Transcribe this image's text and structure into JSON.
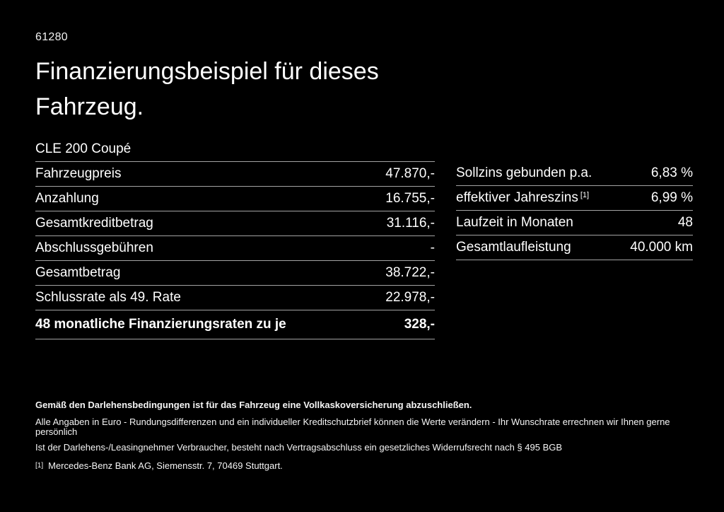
{
  "page": {
    "background_color": "#000000",
    "text_color": "#ffffff",
    "divider_color": "#a3a3a3"
  },
  "document": {
    "number": "61280",
    "title_line1": "Finanzierungsbeispiel für dieses",
    "title_line2": "Fahrzeug.",
    "model": "CLE 200 Coupé"
  },
  "finance_table": {
    "rows": [
      {
        "label": "Fahrzeugpreis",
        "value": "47.870,-"
      },
      {
        "label": "Anzahlung",
        "value": "16.755,-"
      },
      {
        "label": "Gesamtkreditbetrag",
        "value": "31.116,-"
      },
      {
        "label": "Abschlussgebühren",
        "value": "-"
      },
      {
        "label": "Gesamtbetrag",
        "value": "38.722,-"
      },
      {
        "label": "Schlussrate als 49. Rate",
        "value": "22.978,-"
      },
      {
        "label": "48 monatliche Finanzierungsraten zu je",
        "value": "328,-"
      }
    ]
  },
  "conditions_table": {
    "rows": [
      {
        "label": "Sollzins gebunden p.a.",
        "value": "6,83 %"
      },
      {
        "label": "effektiver Jahreszins",
        "label_superscript": "[1]",
        "value": "6,99 %"
      },
      {
        "label": "Laufzeit in Monaten",
        "value": "48"
      },
      {
        "label": "Gesamtlaufleistung",
        "value": "40.000 km"
      }
    ]
  },
  "footer": {
    "bold_note": "Gemäß den Darlehensbedingungen ist für das Fahrzeug eine Vollkaskoversicherung abzuschließen.",
    "notes": [
      "Alle Angaben in Euro - Rundungsdifferenzen und ein individueller Kreditschutzbrief können die Werte verändern - Ihr Wunschrate errechnen wir Ihnen gerne persönlich",
      "Ist der Darlehens-/Leasingnehmer Verbraucher, besteht nach Vertragsabschluss ein gesetzliches Widerrufsrecht nach § 495 BGB"
    ],
    "footnote_marker": "[1]",
    "footnote_text": "Mercedes-Benz Bank AG, Siemensstr. 7, 70469 Stuttgart."
  }
}
